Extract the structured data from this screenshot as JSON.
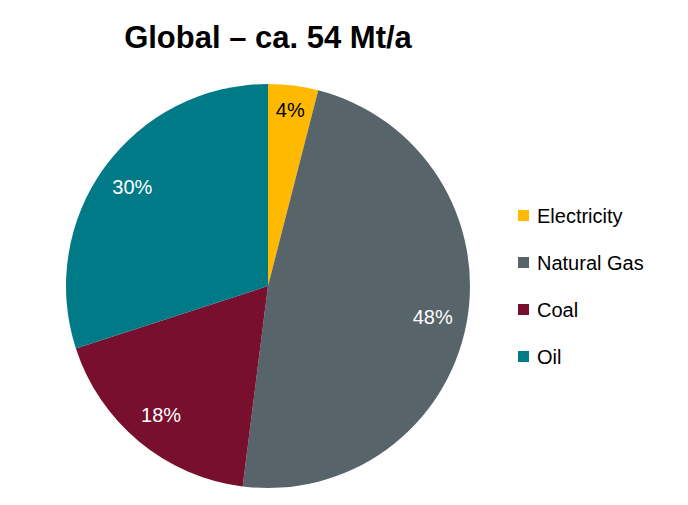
{
  "chart_data": {
    "type": "pie",
    "title": "Global – ca. 54 Mt/a",
    "categories": [
      "Electricity",
      "Natural Gas",
      "Coal",
      "Oil"
    ],
    "values": [
      4,
      48,
      18,
      30
    ],
    "value_labels": [
      "4%",
      "48%",
      "18%",
      "30%"
    ],
    "colors": [
      "#ffb900",
      "#57646a",
      "#790f2e",
      "#007a87"
    ],
    "data_labels": true,
    "legend": "right"
  }
}
